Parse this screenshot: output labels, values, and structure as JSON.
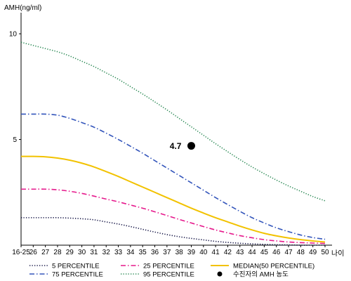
{
  "chart_data": {
    "type": "line",
    "ylabel": "AMH(ng/ml)",
    "xlabel": "나이",
    "x_categories": [
      "16-25",
      "26",
      "27",
      "28",
      "29",
      "30",
      "31",
      "32",
      "33",
      "34",
      "35",
      "36",
      "37",
      "38",
      "39",
      "40",
      "41",
      "42",
      "43",
      "44",
      "45",
      "46",
      "47",
      "48",
      "49",
      "50"
    ],
    "ylim": [
      0,
      11
    ],
    "y_ticks": [
      5,
      10
    ],
    "grid": false,
    "legend_position": "bottom",
    "series": [
      {
        "name": "5 PERCENTILE",
        "style": "dotted",
        "color": "#1a1a4a",
        "values": [
          1.3,
          1.3,
          1.3,
          1.3,
          1.28,
          1.25,
          1.2,
          1.1,
          1.0,
          0.88,
          0.75,
          0.62,
          0.5,
          0.4,
          0.32,
          0.25,
          0.18,
          0.13,
          0.09,
          0.06,
          0.04,
          0.02,
          0.01,
          0.0,
          0.0,
          0.0
        ]
      },
      {
        "name": "25 PERCENTILE",
        "style": "dashdot",
        "color": "#e6198c",
        "values": [
          2.65,
          2.65,
          2.65,
          2.62,
          2.55,
          2.45,
          2.32,
          2.18,
          2.05,
          1.9,
          1.75,
          1.58,
          1.4,
          1.22,
          1.05,
          0.88,
          0.72,
          0.58,
          0.45,
          0.35,
          0.26,
          0.2,
          0.15,
          0.12,
          0.1,
          0.08
        ]
      },
      {
        "name": "MEDIAN(50 PERCENTILE)",
        "style": "solid",
        "color": "#f2c200",
        "values": [
          4.2,
          4.2,
          4.18,
          4.12,
          4.02,
          3.88,
          3.7,
          3.48,
          3.25,
          3.0,
          2.75,
          2.5,
          2.25,
          2.0,
          1.75,
          1.52,
          1.3,
          1.1,
          0.9,
          0.72,
          0.56,
          0.44,
          0.34,
          0.26,
          0.2,
          0.15
        ]
      },
      {
        "name": "75 PERCENTILE",
        "style": "dashdot",
        "color": "#3355bb",
        "values": [
          6.2,
          6.2,
          6.2,
          6.15,
          6.0,
          5.8,
          5.58,
          5.3,
          5.0,
          4.68,
          4.35,
          4.0,
          3.65,
          3.3,
          2.95,
          2.6,
          2.25,
          1.92,
          1.6,
          1.3,
          1.05,
          0.82,
          0.64,
          0.48,
          0.36,
          0.28
        ]
      },
      {
        "name": "95 PERCENTILE",
        "style": "dotted",
        "color": "#2e8b57",
        "values": [
          9.6,
          9.45,
          9.3,
          9.15,
          8.95,
          8.7,
          8.45,
          8.15,
          7.85,
          7.5,
          7.15,
          6.78,
          6.4,
          6.0,
          5.6,
          5.2,
          4.8,
          4.42,
          4.05,
          3.7,
          3.38,
          3.08,
          2.8,
          2.55,
          2.3,
          2.1
        ]
      }
    ],
    "points": [
      {
        "name": "수진자의 AMH 농도",
        "x": "39",
        "y": 4.7,
        "label": "4.7",
        "color": "#000000"
      }
    ]
  }
}
